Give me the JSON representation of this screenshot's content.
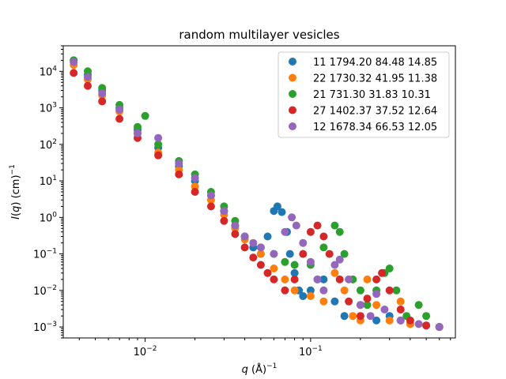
{
  "chart_data": {
    "type": "scatter",
    "title": "random multilayer vesicles",
    "xlabel": "q (Å)^-1",
    "ylabel": "I(q) (cm)^-1",
    "xscale": "log",
    "yscale": "log",
    "xlim": [
      0.0032,
      0.75
    ],
    "ylim": [
      0.0005,
      50000
    ],
    "x_ticks": [
      {
        "value": 0.01,
        "label": "10^-2"
      },
      {
        "value": 0.1,
        "label": "10^-1"
      }
    ],
    "y_ticks": [
      {
        "value": 0.001,
        "label": "10^-3"
      },
      {
        "value": 0.01,
        "label": "10^-2"
      },
      {
        "value": 0.1,
        "label": "10^-1"
      },
      {
        "value": 1,
        "label": "10^0"
      },
      {
        "value": 10,
        "label": "10^1"
      },
      {
        "value": 100,
        "label": "10^2"
      },
      {
        "value": 1000,
        "label": "10^3"
      },
      {
        "value": 10000,
        "label": "10^4"
      }
    ],
    "legend_position": "top-right",
    "series": [
      {
        "name": "11 1794.20 84.48 14.85",
        "color": "#1f77b4",
        "points": [
          [
            0.0037,
            20000
          ],
          [
            0.0045,
            8000
          ],
          [
            0.0055,
            3000
          ],
          [
            0.007,
            1000
          ],
          [
            0.009,
            250
          ],
          [
            0.012,
            80
          ],
          [
            0.016,
            25
          ],
          [
            0.02,
            10
          ],
          [
            0.025,
            4
          ],
          [
            0.03,
            1.5
          ],
          [
            0.035,
            0.6
          ],
          [
            0.04,
            0.3
          ],
          [
            0.045,
            0.15
          ],
          [
            0.05,
            0.1
          ],
          [
            0.055,
            0.3
          ],
          [
            0.06,
            1.5
          ],
          [
            0.063,
            2
          ],
          [
            0.067,
            1.4
          ],
          [
            0.072,
            0.4
          ],
          [
            0.075,
            0.1
          ],
          [
            0.08,
            0.03
          ],
          [
            0.085,
            0.01
          ],
          [
            0.09,
            0.007
          ],
          [
            0.1,
            0.01
          ],
          [
            0.11,
            0.02
          ],
          [
            0.12,
            0.02
          ],
          [
            0.14,
            0.005
          ],
          [
            0.16,
            0.002
          ],
          [
            0.2,
            0.004
          ],
          [
            0.25,
            0.0015
          ],
          [
            0.3,
            0.002
          ],
          [
            0.35,
            0.0015
          ],
          [
            0.4,
            0.0012
          ],
          [
            0.5,
            0.0011
          ],
          [
            0.6,
            0.001
          ]
        ]
      },
      {
        "name": "22 1730.32 41.95 11.38",
        "color": "#ff7f0e",
        "points": [
          [
            0.0037,
            15000
          ],
          [
            0.0045,
            6000
          ],
          [
            0.0055,
            2200
          ],
          [
            0.007,
            800
          ],
          [
            0.009,
            200
          ],
          [
            0.012,
            60
          ],
          [
            0.016,
            20
          ],
          [
            0.02,
            7
          ],
          [
            0.025,
            3
          ],
          [
            0.03,
            1.2
          ],
          [
            0.035,
            0.5
          ],
          [
            0.04,
            0.25
          ],
          [
            0.05,
            0.1
          ],
          [
            0.06,
            0.04
          ],
          [
            0.07,
            0.02
          ],
          [
            0.08,
            0.01
          ],
          [
            0.1,
            0.007
          ],
          [
            0.12,
            0.005
          ],
          [
            0.14,
            0.03
          ],
          [
            0.16,
            0.01
          ],
          [
            0.18,
            0.002
          ],
          [
            0.2,
            0.0015
          ],
          [
            0.22,
            0.02
          ],
          [
            0.25,
            0.004
          ],
          [
            0.3,
            0.0015
          ],
          [
            0.35,
            0.005
          ],
          [
            0.4,
            0.0012
          ],
          [
            0.5,
            0.0011
          ],
          [
            0.6,
            0.001
          ]
        ]
      },
      {
        "name": "21 731.30 31.83 10.31",
        "color": "#2ca02c",
        "points": [
          [
            0.0037,
            20000
          ],
          [
            0.0045,
            10000
          ],
          [
            0.0055,
            3500
          ],
          [
            0.007,
            1200
          ],
          [
            0.009,
            300
          ],
          [
            0.01,
            600
          ],
          [
            0.012,
            100
          ],
          [
            0.016,
            35
          ],
          [
            0.02,
            15
          ],
          [
            0.025,
            5
          ],
          [
            0.03,
            2
          ],
          [
            0.035,
            0.8
          ],
          [
            0.04,
            0.3
          ],
          [
            0.05,
            0.15
          ],
          [
            0.06,
            0.1
          ],
          [
            0.07,
            0.06
          ],
          [
            0.08,
            0.05
          ],
          [
            0.1,
            0.05
          ],
          [
            0.12,
            0.15
          ],
          [
            0.14,
            0.6
          ],
          [
            0.15,
            0.4
          ],
          [
            0.16,
            0.1
          ],
          [
            0.18,
            0.02
          ],
          [
            0.2,
            0.01
          ],
          [
            0.22,
            0.004
          ],
          [
            0.25,
            0.01
          ],
          [
            0.28,
            0.03
          ],
          [
            0.3,
            0.04
          ],
          [
            0.33,
            0.01
          ],
          [
            0.38,
            0.002
          ],
          [
            0.45,
            0.004
          ],
          [
            0.5,
            0.002
          ],
          [
            0.6,
            0.001
          ]
        ]
      },
      {
        "name": "27 1402.37 37.52 12.64",
        "color": "#d62728",
        "points": [
          [
            0.0037,
            9000
          ],
          [
            0.0045,
            4000
          ],
          [
            0.0055,
            1500
          ],
          [
            0.007,
            500
          ],
          [
            0.009,
            150
          ],
          [
            0.012,
            50
          ],
          [
            0.016,
            15
          ],
          [
            0.02,
            5
          ],
          [
            0.025,
            2
          ],
          [
            0.03,
            0.8
          ],
          [
            0.035,
            0.35
          ],
          [
            0.04,
            0.15
          ],
          [
            0.045,
            0.08
          ],
          [
            0.05,
            0.05
          ],
          [
            0.055,
            0.03
          ],
          [
            0.06,
            0.02
          ],
          [
            0.07,
            0.01
          ],
          [
            0.08,
            0.02
          ],
          [
            0.09,
            0.1
          ],
          [
            0.1,
            0.4
          ],
          [
            0.11,
            0.6
          ],
          [
            0.12,
            0.3
          ],
          [
            0.13,
            0.1
          ],
          [
            0.15,
            0.02
          ],
          [
            0.17,
            0.005
          ],
          [
            0.2,
            0.002
          ],
          [
            0.22,
            0.006
          ],
          [
            0.25,
            0.02
          ],
          [
            0.27,
            0.03
          ],
          [
            0.3,
            0.01
          ],
          [
            0.35,
            0.003
          ],
          [
            0.4,
            0.0015
          ],
          [
            0.5,
            0.0011
          ],
          [
            0.6,
            0.001
          ]
        ]
      },
      {
        "name": "12 1678.34 66.53 12.05",
        "color": "#9467bd",
        "points": [
          [
            0.0037,
            18000
          ],
          [
            0.0045,
            7000
          ],
          [
            0.0055,
            2500
          ],
          [
            0.007,
            900
          ],
          [
            0.009,
            200
          ],
          [
            0.012,
            150
          ],
          [
            0.016,
            30
          ],
          [
            0.02,
            12
          ],
          [
            0.025,
            4
          ],
          [
            0.03,
            1.5
          ],
          [
            0.035,
            0.6
          ],
          [
            0.04,
            0.3
          ],
          [
            0.045,
            0.2
          ],
          [
            0.05,
            0.15
          ],
          [
            0.06,
            0.1
          ],
          [
            0.07,
            0.4
          ],
          [
            0.077,
            1
          ],
          [
            0.082,
            0.6
          ],
          [
            0.09,
            0.2
          ],
          [
            0.1,
            0.06
          ],
          [
            0.11,
            0.02
          ],
          [
            0.12,
            0.01
          ],
          [
            0.14,
            0.05
          ],
          [
            0.15,
            0.07
          ],
          [
            0.17,
            0.02
          ],
          [
            0.2,
            0.004
          ],
          [
            0.23,
            0.002
          ],
          [
            0.25,
            0.008
          ],
          [
            0.28,
            0.003
          ],
          [
            0.35,
            0.0015
          ],
          [
            0.45,
            0.0012
          ],
          [
            0.6,
            0.001
          ]
        ]
      }
    ]
  }
}
